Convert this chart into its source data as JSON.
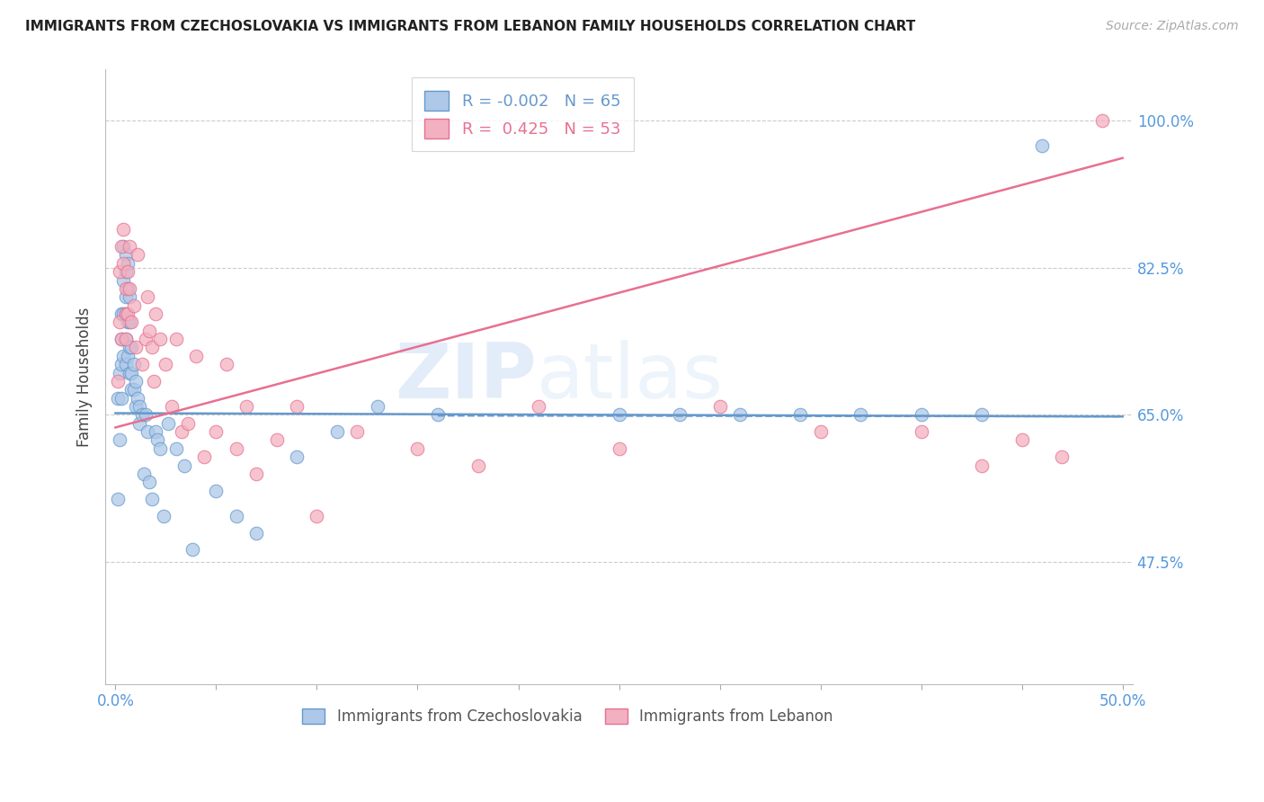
{
  "title": "IMMIGRANTS FROM CZECHOSLOVAKIA VS IMMIGRANTS FROM LEBANON FAMILY HOUSEHOLDS CORRELATION CHART",
  "source": "Source: ZipAtlas.com",
  "ylabel": "Family Households",
  "yticks": [
    0.475,
    0.65,
    0.825,
    1.0
  ],
  "ytick_labels": [
    "47.5%",
    "65.0%",
    "82.5%",
    "100.0%"
  ],
  "xlim": [
    -0.005,
    0.505
  ],
  "ylim": [
    0.33,
    1.06
  ],
  "legend_r_czech": "-0.002",
  "legend_n_czech": "65",
  "legend_r_lebanon": "0.425",
  "legend_n_lebanon": "53",
  "color_czech": "#adc8e8",
  "color_lebanon": "#f2b0c0",
  "trendline_czech_color": "#6699cc",
  "trendline_lebanon_color": "#e87090",
  "watermark_zip": "ZIP",
  "watermark_atlas": "atlas",
  "background_color": "#ffffff",
  "trendline_czech_x0": 0.0,
  "trendline_czech_y0": 0.652,
  "trendline_czech_x1": 0.5,
  "trendline_czech_y1": 0.648,
  "trendline_lebanon_x0": 0.0,
  "trendline_lebanon_y0": 0.635,
  "trendline_lebanon_x1": 0.5,
  "trendline_lebanon_y1": 0.955,
  "czech_x": [
    0.001,
    0.001,
    0.002,
    0.002,
    0.003,
    0.003,
    0.003,
    0.003,
    0.004,
    0.004,
    0.004,
    0.004,
    0.005,
    0.005,
    0.005,
    0.005,
    0.005,
    0.005,
    0.006,
    0.006,
    0.006,
    0.006,
    0.007,
    0.007,
    0.007,
    0.007,
    0.008,
    0.008,
    0.008,
    0.009,
    0.009,
    0.01,
    0.01,
    0.011,
    0.012,
    0.012,
    0.013,
    0.014,
    0.015,
    0.016,
    0.017,
    0.018,
    0.02,
    0.021,
    0.022,
    0.024,
    0.026,
    0.03,
    0.034,
    0.038,
    0.05,
    0.06,
    0.07,
    0.09,
    0.11,
    0.13,
    0.16,
    0.25,
    0.28,
    0.31,
    0.34,
    0.37,
    0.4,
    0.43,
    0.46
  ],
  "czech_y": [
    0.67,
    0.55,
    0.7,
    0.62,
    0.77,
    0.74,
    0.71,
    0.67,
    0.85,
    0.81,
    0.77,
    0.72,
    0.84,
    0.82,
    0.79,
    0.77,
    0.74,
    0.71,
    0.83,
    0.8,
    0.76,
    0.72,
    0.79,
    0.76,
    0.73,
    0.7,
    0.73,
    0.7,
    0.68,
    0.71,
    0.68,
    0.69,
    0.66,
    0.67,
    0.66,
    0.64,
    0.65,
    0.58,
    0.65,
    0.63,
    0.57,
    0.55,
    0.63,
    0.62,
    0.61,
    0.53,
    0.64,
    0.61,
    0.59,
    0.49,
    0.56,
    0.53,
    0.51,
    0.6,
    0.63,
    0.66,
    0.65,
    0.65,
    0.65,
    0.65,
    0.65,
    0.65,
    0.65,
    0.65,
    0.97
  ],
  "lebanon_x": [
    0.001,
    0.002,
    0.002,
    0.003,
    0.003,
    0.004,
    0.004,
    0.005,
    0.005,
    0.005,
    0.006,
    0.006,
    0.007,
    0.007,
    0.008,
    0.009,
    0.01,
    0.011,
    0.013,
    0.015,
    0.016,
    0.017,
    0.018,
    0.019,
    0.02,
    0.022,
    0.025,
    0.028,
    0.03,
    0.033,
    0.036,
    0.04,
    0.044,
    0.05,
    0.055,
    0.06,
    0.065,
    0.07,
    0.08,
    0.09,
    0.1,
    0.12,
    0.15,
    0.18,
    0.21,
    0.25,
    0.3,
    0.35,
    0.4,
    0.43,
    0.45,
    0.47,
    0.49
  ],
  "lebanon_y": [
    0.69,
    0.82,
    0.76,
    0.85,
    0.74,
    0.87,
    0.83,
    0.8,
    0.77,
    0.74,
    0.82,
    0.77,
    0.85,
    0.8,
    0.76,
    0.78,
    0.73,
    0.84,
    0.71,
    0.74,
    0.79,
    0.75,
    0.73,
    0.69,
    0.77,
    0.74,
    0.71,
    0.66,
    0.74,
    0.63,
    0.64,
    0.72,
    0.6,
    0.63,
    0.71,
    0.61,
    0.66,
    0.58,
    0.62,
    0.66,
    0.53,
    0.63,
    0.61,
    0.59,
    0.66,
    0.61,
    0.66,
    0.63,
    0.63,
    0.59,
    0.62,
    0.6,
    1.0
  ]
}
